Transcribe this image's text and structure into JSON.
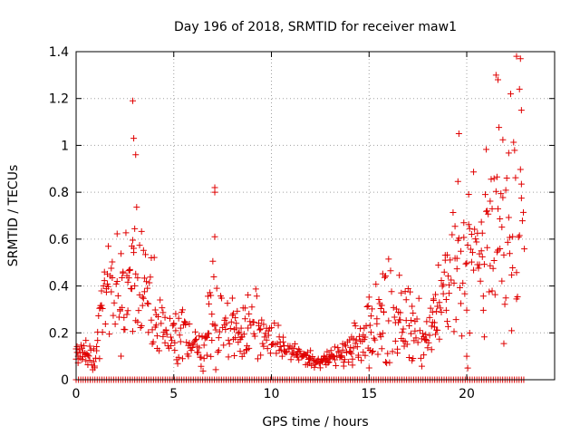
{
  "chart_data": {
    "type": "scatter",
    "title": "Day 196 of 2018, SRMTID for receiver maw1",
    "xlabel": "GPS time / hours",
    "ylabel": "SRMTID / TECUs",
    "xlim": [
      0,
      24.5
    ],
    "ylim": [
      0,
      1.4
    ],
    "x_ticks": [
      0,
      5,
      10,
      15,
      20
    ],
    "x_tick_labels": [
      "0",
      "5",
      "10",
      "15",
      "20"
    ],
    "y_ticks": [
      0,
      0.2,
      0.4,
      0.6,
      0.8,
      1,
      1.2,
      1.4
    ],
    "y_tick_labels": [
      "0",
      "0.2",
      "0.4",
      "0.6",
      "0.8",
      "1",
      "1.2",
      "1.4"
    ],
    "grid": true,
    "marker": "+",
    "series_color": "#e00000",
    "series": [
      {
        "name": "SRMTID",
        "profile": {
          "x": [
            0.0,
            0.5,
            1.0,
            1.5,
            2.0,
            2.5,
            3.0,
            3.5,
            4.0,
            4.5,
            5.0,
            5.5,
            6.0,
            6.5,
            7.0,
            7.5,
            8.0,
            8.5,
            9.0,
            9.5,
            10.0,
            10.5,
            11.0,
            11.5,
            12.0,
            12.5,
            13.0,
            13.5,
            14.0,
            14.5,
            15.0,
            15.5,
            16.0,
            16.5,
            17.0,
            17.5,
            18.0,
            18.5,
            19.0,
            19.5,
            20.0,
            20.5,
            21.0,
            21.5,
            22.0,
            22.5,
            23.0
          ],
          "y_center": [
            0.12,
            0.11,
            0.09,
            0.42,
            0.38,
            0.35,
            0.45,
            0.4,
            0.3,
            0.22,
            0.18,
            0.2,
            0.15,
            0.12,
            0.28,
            0.25,
            0.22,
            0.2,
            0.24,
            0.2,
            0.18,
            0.16,
            0.12,
            0.1,
            0.09,
            0.08,
            0.09,
            0.1,
            0.12,
            0.15,
            0.2,
            0.28,
            0.3,
            0.26,
            0.28,
            0.2,
            0.15,
            0.3,
            0.4,
            0.55,
            0.6,
            0.5,
            0.55,
            0.6,
            0.65,
            0.7,
            0.6
          ],
          "y_spread": [
            0.05,
            0.06,
            0.05,
            0.18,
            0.18,
            0.2,
            0.3,
            0.2,
            0.16,
            0.1,
            0.1,
            0.12,
            0.08,
            0.08,
            0.2,
            0.12,
            0.12,
            0.12,
            0.15,
            0.1,
            0.08,
            0.06,
            0.04,
            0.03,
            0.03,
            0.03,
            0.03,
            0.04,
            0.06,
            0.1,
            0.14,
            0.16,
            0.2,
            0.14,
            0.2,
            0.14,
            0.08,
            0.15,
            0.22,
            0.3,
            0.4,
            0.3,
            0.35,
            0.4,
            0.4,
            0.4,
            0.3
          ]
        },
        "notable_points": [
          [
            2.9,
            1.19
          ],
          [
            2.95,
            1.03
          ],
          [
            3.05,
            0.96
          ],
          [
            7.1,
            0.82
          ],
          [
            7.1,
            0.8
          ],
          [
            7.1,
            0.61
          ],
          [
            19.6,
            1.05
          ],
          [
            21.5,
            1.3
          ],
          [
            21.6,
            1.28
          ],
          [
            22.55,
            1.38
          ],
          [
            22.75,
            1.37
          ],
          [
            22.7,
            1.24
          ],
          [
            22.8,
            1.15
          ],
          [
            20.0,
            0.1
          ],
          [
            20.05,
            0.05
          ]
        ],
        "zero_band": {
          "from": 0.0,
          "to": 23.0,
          "value": 0
        }
      }
    ]
  }
}
